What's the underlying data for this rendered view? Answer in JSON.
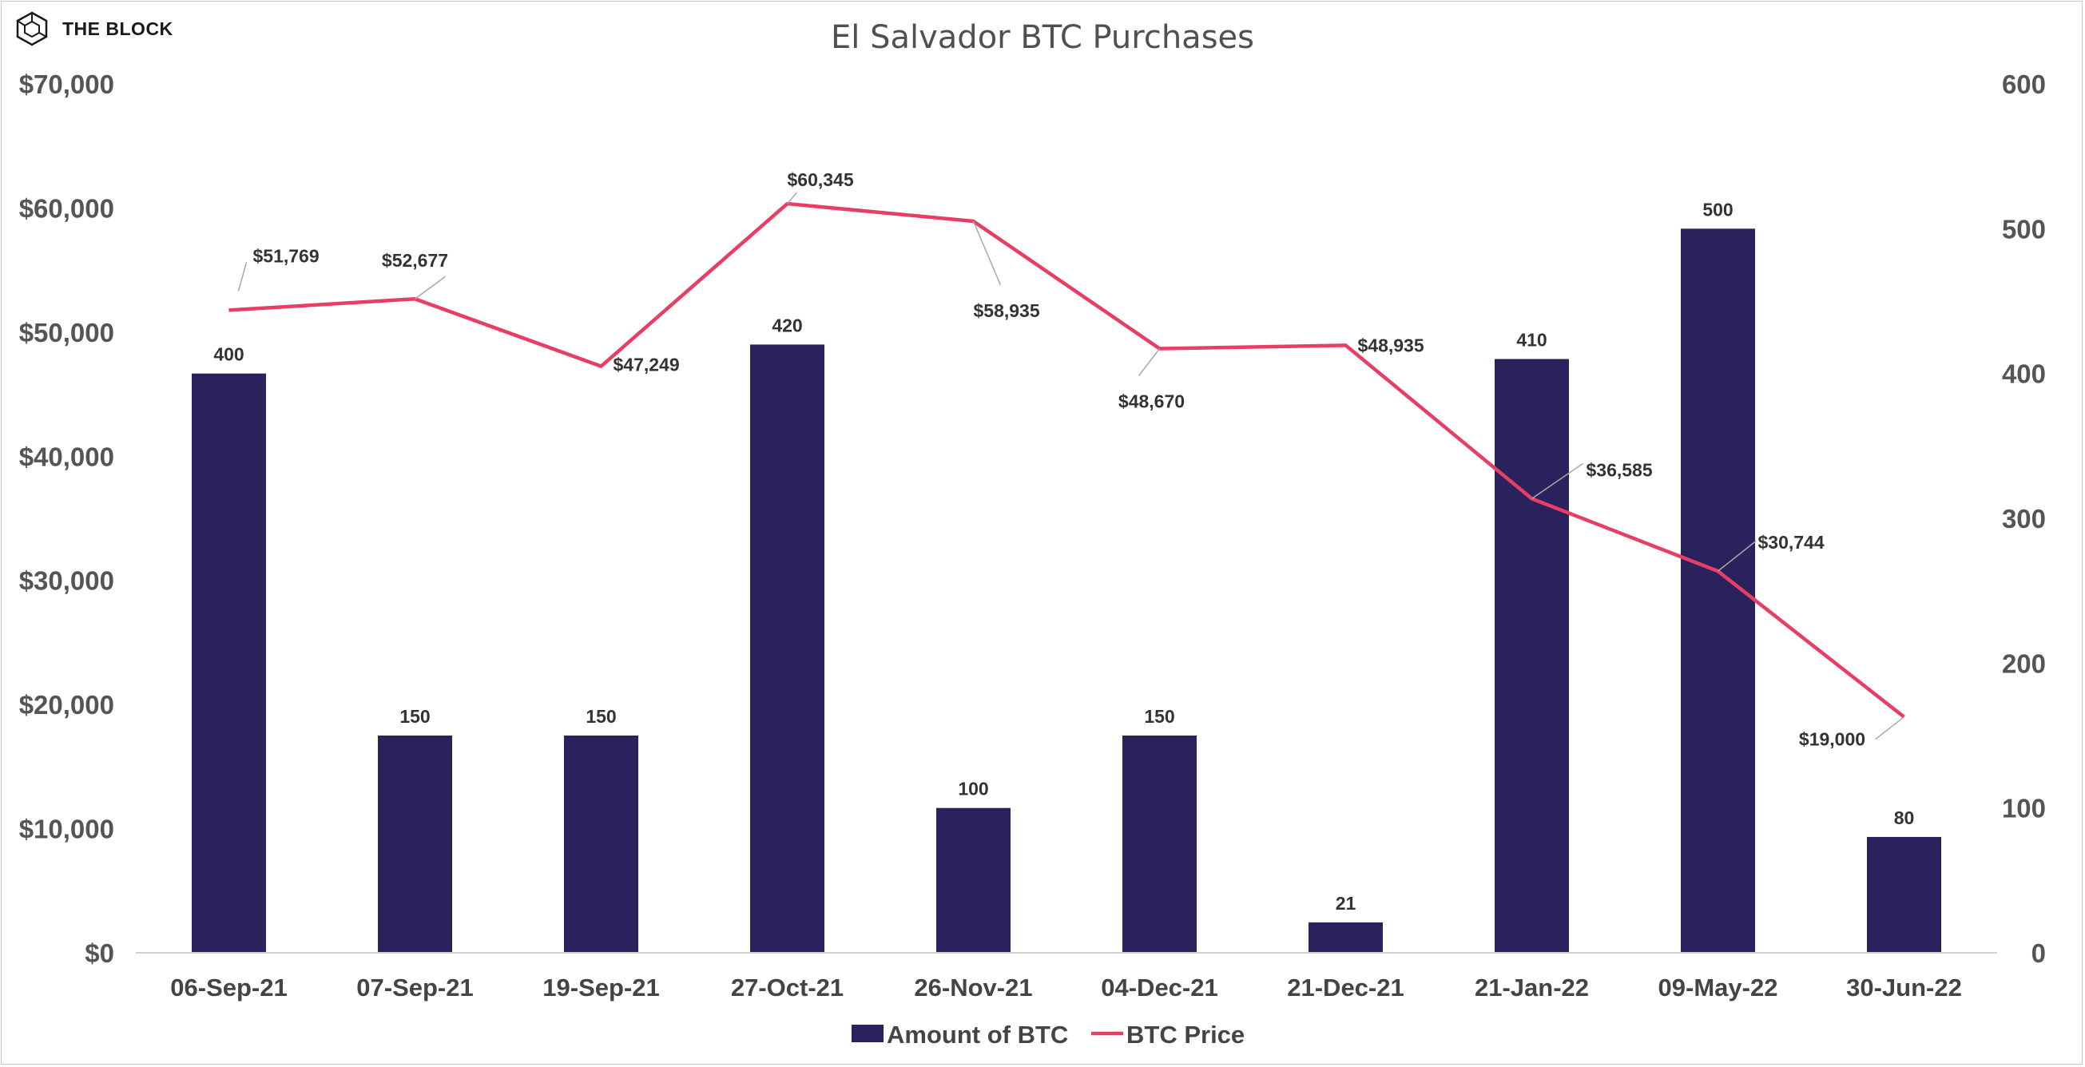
{
  "brand": {
    "name": "THE BLOCK"
  },
  "chart_data": {
    "type": "bar",
    "title": "El Salvador BTC Purchases",
    "categories": [
      "06-Sep-21",
      "07-Sep-21",
      "19-Sep-21",
      "27-Oct-21",
      "26-Nov-21",
      "04-Dec-21",
      "21-Dec-21",
      "21-Jan-22",
      "09-May-22",
      "30-Jun-22"
    ],
    "series": [
      {
        "name": "Amount of BTC",
        "type": "bar",
        "axis": "right",
        "color": "#29225c",
        "values": [
          400,
          150,
          150,
          420,
          100,
          150,
          21,
          410,
          500,
          80
        ],
        "labels": [
          "400",
          "150",
          "150",
          "420",
          "100",
          "150",
          "21",
          "410",
          "500",
          "80"
        ]
      },
      {
        "name": "BTC Price",
        "type": "line",
        "axis": "left",
        "color": "#e83e64",
        "values": [
          51769,
          52677,
          47249,
          60345,
          58935,
          48670,
          48935,
          36585,
          30744,
          19000
        ],
        "labels": [
          "$51,769",
          "$52,677",
          "$47,249",
          "$60,345",
          "$58,935",
          "$48,670",
          "$48,935",
          "$36,585",
          "$30,744",
          "$19,000"
        ]
      }
    ],
    "y_left": {
      "ylim": [
        0,
        70000
      ],
      "ticks": [
        0,
        10000,
        20000,
        30000,
        40000,
        50000,
        60000,
        70000
      ],
      "tick_labels": [
        "$0",
        "$10,000",
        "$20,000",
        "$30,000",
        "$40,000",
        "$50,000",
        "$60,000",
        "$70,000"
      ]
    },
    "y_right": {
      "ylim": [
        0,
        600
      ],
      "ticks": [
        0,
        100,
        200,
        300,
        400,
        500,
        600
      ],
      "tick_labels": [
        "0",
        "100",
        "200",
        "300",
        "400",
        "500",
        "600"
      ]
    },
    "grid": false,
    "legend": "bottom"
  }
}
